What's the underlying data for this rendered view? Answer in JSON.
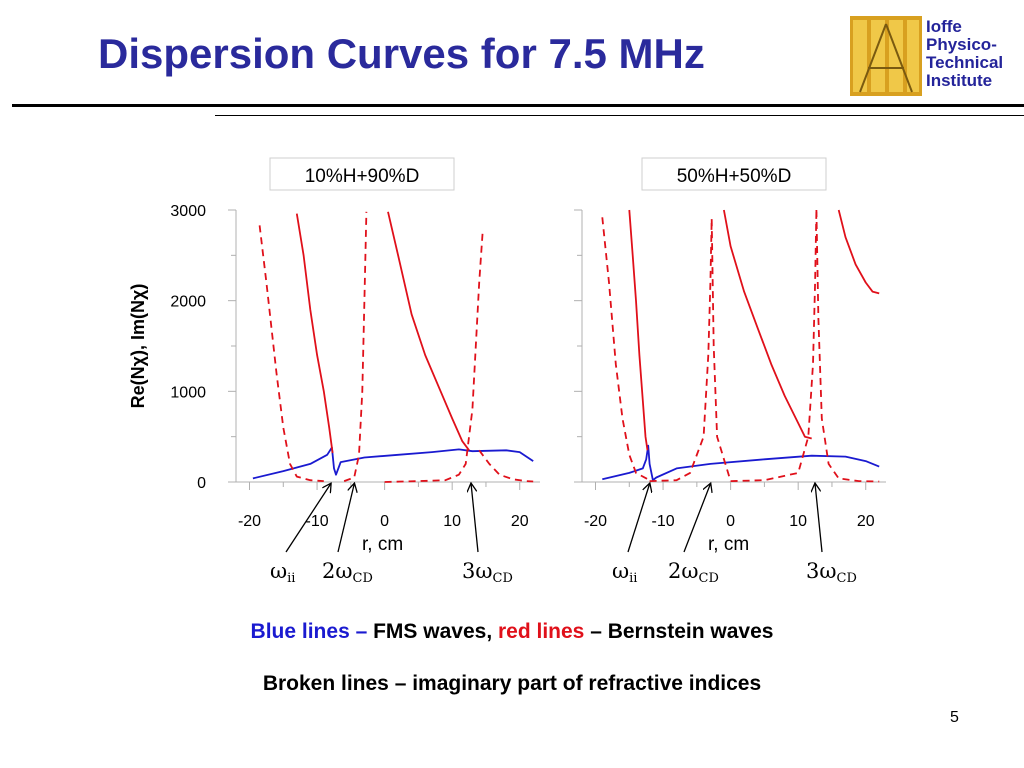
{
  "slide": {
    "title": "Dispersion Curves for 7.5 MHz",
    "page_number": "5"
  },
  "logo": {
    "lines": [
      "Ioffe",
      "Physico-",
      "Technical",
      "Institute"
    ],
    "text_color": "#24249a",
    "gold_color": "#d8a020"
  },
  "captions": {
    "line1": {
      "blue_part": "Blue lines –",
      "mid_part": " FMS waves, ",
      "red_part": "red lines",
      "end_part": " – Bernstein waves"
    },
    "line2": "Broken lines – imaginary part of refractive indices"
  },
  "chart_data": [
    {
      "type": "line",
      "title": "10%H+90%D",
      "xlabel": "r, cm",
      "ylabel": "Re(Nχ), Im(Nχ)",
      "xlim": [
        -22,
        23
      ],
      "ylim": [
        0,
        3000
      ],
      "x_ticks": [
        "-20",
        "-10",
        "0",
        "10",
        "20"
      ],
      "y_ticks": [
        "0",
        "1000",
        "2000",
        "3000"
      ],
      "colors": {
        "fms": "#1a1ad0",
        "bernstein": "#e0101a"
      },
      "series": [
        {
          "style": "solid",
          "color": "#1a1ad0",
          "points": [
            [
              -19.5,
              40
            ],
            [
              -15,
              120
            ],
            [
              -11,
              200
            ],
            [
              -8.5,
              300
            ],
            [
              -7.8,
              380
            ],
            [
              -7.5,
              150
            ],
            [
              -7.2,
              80
            ],
            [
              -6.5,
              220
            ],
            [
              -3,
              270
            ],
            [
              2,
              300
            ],
            [
              7,
              330
            ],
            [
              11,
              360
            ],
            [
              13,
              340
            ],
            [
              18,
              350
            ],
            [
              20,
              330
            ],
            [
              22,
              230
            ]
          ]
        },
        {
          "style": "solid",
          "color": "#e0101a",
          "points": [
            [
              -13,
              2960
            ],
            [
              -12,
              2500
            ],
            [
              -11,
              1900
            ],
            [
              -10,
              1400
            ],
            [
              -9,
              1000
            ],
            [
              -8.2,
              600
            ],
            [
              -7.7,
              320
            ]
          ]
        },
        {
          "style": "solid",
          "color": "#e0101a",
          "points": [
            [
              0.5,
              2980
            ],
            [
              2,
              2500
            ],
            [
              4,
              1850
            ],
            [
              6,
              1400
            ],
            [
              8,
              1050
            ],
            [
              10,
              700
            ],
            [
              11.5,
              450
            ],
            [
              12.5,
              350
            ]
          ]
        },
        {
          "style": "dashed",
          "color": "#e0101a",
          "points": [
            [
              -18.5,
              2830
            ],
            [
              -17.5,
              2200
            ],
            [
              -16,
              1200
            ],
            [
              -15,
              600
            ],
            [
              -14,
              200
            ],
            [
              -13,
              60
            ],
            [
              -11,
              20
            ],
            [
              -9,
              10
            ]
          ]
        },
        {
          "style": "dashed",
          "color": "#e0101a",
          "points": [
            [
              -6,
              10
            ],
            [
              -4.5,
              50
            ],
            [
              -3.8,
              300
            ],
            [
              -3.3,
              1000
            ],
            [
              -3,
              2000
            ],
            [
              -2.7,
              2980
            ]
          ]
        },
        {
          "style": "dashed",
          "color": "#e0101a",
          "points": [
            [
              0,
              0
            ],
            [
              5,
              10
            ],
            [
              9,
              20
            ],
            [
              11,
              80
            ],
            [
              12,
              200
            ],
            [
              13,
              800
            ],
            [
              13.5,
              1500
            ],
            [
              14,
              2200
            ],
            [
              14.5,
              2750
            ]
          ]
        },
        {
          "style": "dashed",
          "color": "#e0101a",
          "points": [
            [
              14,
              350
            ],
            [
              15.5,
              200
            ],
            [
              17,
              80
            ],
            [
              19,
              30
            ],
            [
              21,
              10
            ],
            [
              22,
              5
            ]
          ]
        }
      ],
      "annotations": [
        {
          "label_base": "ω",
          "label_sub": "ii",
          "points_to": [
            -8,
            0
          ]
        },
        {
          "label_base": "2ω",
          "label_sub": "CD",
          "points_to": [
            -4.5,
            0
          ]
        },
        {
          "label_base": "3ω",
          "label_sub": "CD",
          "points_to": [
            12.8,
            0
          ]
        }
      ]
    },
    {
      "type": "line",
      "title": "50%H+50%D",
      "xlabel": "r, cm",
      "ylabel": "",
      "xlim": [
        -22,
        23
      ],
      "ylim": [
        0,
        3000
      ],
      "x_ticks": [
        "-20",
        "-10",
        "0",
        "10",
        "20"
      ],
      "y_ticks": [],
      "colors": {
        "fms": "#1a1ad0",
        "bernstein": "#e0101a"
      },
      "series": [
        {
          "style": "solid",
          "color": "#1a1ad0",
          "points": [
            [
              -19,
              30
            ],
            [
              -15,
              100
            ],
            [
              -13,
              150
            ],
            [
              -12.5,
              250
            ],
            [
              -12.2,
              400
            ],
            [
              -12,
              200
            ],
            [
              -11.5,
              20
            ],
            [
              -11,
              50
            ],
            [
              -8,
              150
            ],
            [
              -3,
              200
            ],
            [
              5,
              250
            ],
            [
              12,
              290
            ],
            [
              17,
              280
            ],
            [
              20,
              230
            ],
            [
              22,
              170
            ]
          ]
        },
        {
          "style": "solid",
          "color": "#e0101a",
          "points": [
            [
              -15,
              3000
            ],
            [
              -14.5,
              2500
            ],
            [
              -14,
              2000
            ],
            [
              -13.5,
              1400
            ],
            [
              -13,
              900
            ],
            [
              -12.6,
              500
            ],
            [
              -12.3,
              350
            ]
          ]
        },
        {
          "style": "solid",
          "color": "#e0101a",
          "points": [
            [
              -1,
              3000
            ],
            [
              0,
              2600
            ],
            [
              2,
              2100
            ],
            [
              4,
              1700
            ],
            [
              6,
              1300
            ],
            [
              8,
              950
            ],
            [
              10,
              650
            ],
            [
              11,
              500
            ],
            [
              12,
              480
            ]
          ]
        },
        {
          "style": "solid",
          "color": "#e0101a",
          "points": [
            [
              16,
              3000
            ],
            [
              17,
              2700
            ],
            [
              18.5,
              2400
            ],
            [
              20,
              2200
            ],
            [
              21,
              2100
            ],
            [
              22,
              2080
            ]
          ]
        },
        {
          "style": "dashed",
          "color": "#e0101a",
          "points": [
            [
              -19,
              2920
            ],
            [
              -18,
              2200
            ],
            [
              -17,
              1300
            ],
            [
              -16,
              700
            ],
            [
              -15,
              300
            ],
            [
              -14,
              100
            ],
            [
              -12,
              20
            ]
          ]
        },
        {
          "style": "dashed",
          "color": "#e0101a",
          "points": [
            [
              -12,
              10
            ],
            [
              -8,
              20
            ],
            [
              -6,
              100
            ],
            [
              -4,
              500
            ],
            [
              -3.3,
              1400
            ],
            [
              -3,
              2200
            ],
            [
              -2.8,
              2900
            ]
          ]
        },
        {
          "style": "dashed",
          "color": "#e0101a",
          "points": [
            [
              0,
              10
            ],
            [
              5,
              20
            ],
            [
              10,
              100
            ],
            [
              11.5,
              500
            ],
            [
              12.2,
              1300
            ],
            [
              12.5,
              2200
            ],
            [
              12.7,
              3000
            ]
          ]
        },
        {
          "style": "dashed",
          "color": "#e0101a",
          "points": [
            [
              -2.8,
              2900
            ],
            [
              -2.5,
              1500
            ],
            [
              -2,
              500
            ],
            [
              0,
              10
            ]
          ]
        },
        {
          "style": "dashed",
          "color": "#e0101a",
          "points": [
            [
              12.7,
              3000
            ],
            [
              13,
              1800
            ],
            [
              13.5,
              700
            ],
            [
              14.5,
              200
            ],
            [
              16,
              40
            ],
            [
              19,
              10
            ],
            [
              22,
              5
            ]
          ]
        }
      ],
      "annotations": [
        {
          "label_base": "ω",
          "label_sub": "ii",
          "points_to": [
            -12,
            0
          ]
        },
        {
          "label_base": "2ω",
          "label_sub": "CD",
          "points_to": [
            -3,
            0
          ]
        },
        {
          "label_base": "3ω",
          "label_sub": "CD",
          "points_to": [
            12.5,
            0
          ]
        }
      ]
    }
  ]
}
